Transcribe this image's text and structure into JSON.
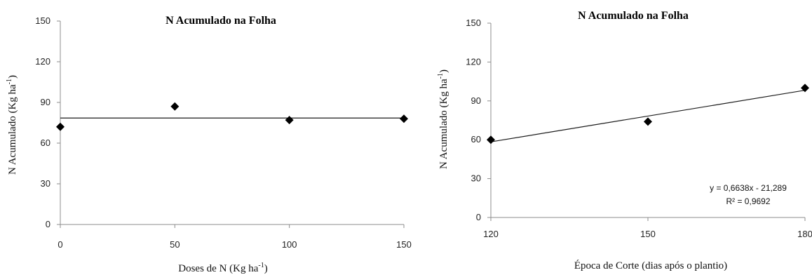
{
  "chart_data": [
    {
      "type": "scatter",
      "title": "N Acumulado na Folha",
      "xlabel": {
        "main": "Doses de N (Kg ha",
        "sup": "-1",
        "end": ")"
      },
      "ylabel": {
        "main": "N Acumulado  (Kg ha",
        "sup": "-1",
        "end": ")"
      },
      "x": [
        0,
        50,
        100,
        150
      ],
      "y": [
        72,
        87,
        77,
        78
      ],
      "xticks": [
        "0",
        "50",
        "100",
        "150"
      ],
      "yticks": [
        "0",
        "30",
        "60",
        "90",
        "120",
        "150"
      ],
      "xlim": [
        0,
        150
      ],
      "ylim": [
        0,
        150
      ],
      "trendline": {
        "type": "constant",
        "y": 78.5
      },
      "marker": "diamond",
      "grid": false
    },
    {
      "type": "scatter",
      "title": "N Acumulado na Folha",
      "xlabel": {
        "main": "Época de Corte (dias após o plantio)",
        "sup": "",
        "end": ""
      },
      "ylabel": {
        "main": "N Acumulado (Kg ha",
        "sup": "-1",
        "end": ")"
      },
      "x": [
        120,
        150,
        180
      ],
      "y": [
        60,
        74,
        100
      ],
      "xticks": [
        "120",
        "150",
        "180"
      ],
      "yticks": [
        "0",
        "30",
        "60",
        "90",
        "120",
        "150"
      ],
      "xlim": [
        120,
        180
      ],
      "ylim": [
        0,
        150
      ],
      "trendline": {
        "type": "linear",
        "slope": 0.6638,
        "intercept": -21.289
      },
      "equation": "y = 0,6638x - 21,289",
      "r2": "R² = 0,9692",
      "marker": "diamond",
      "grid": false
    }
  ]
}
